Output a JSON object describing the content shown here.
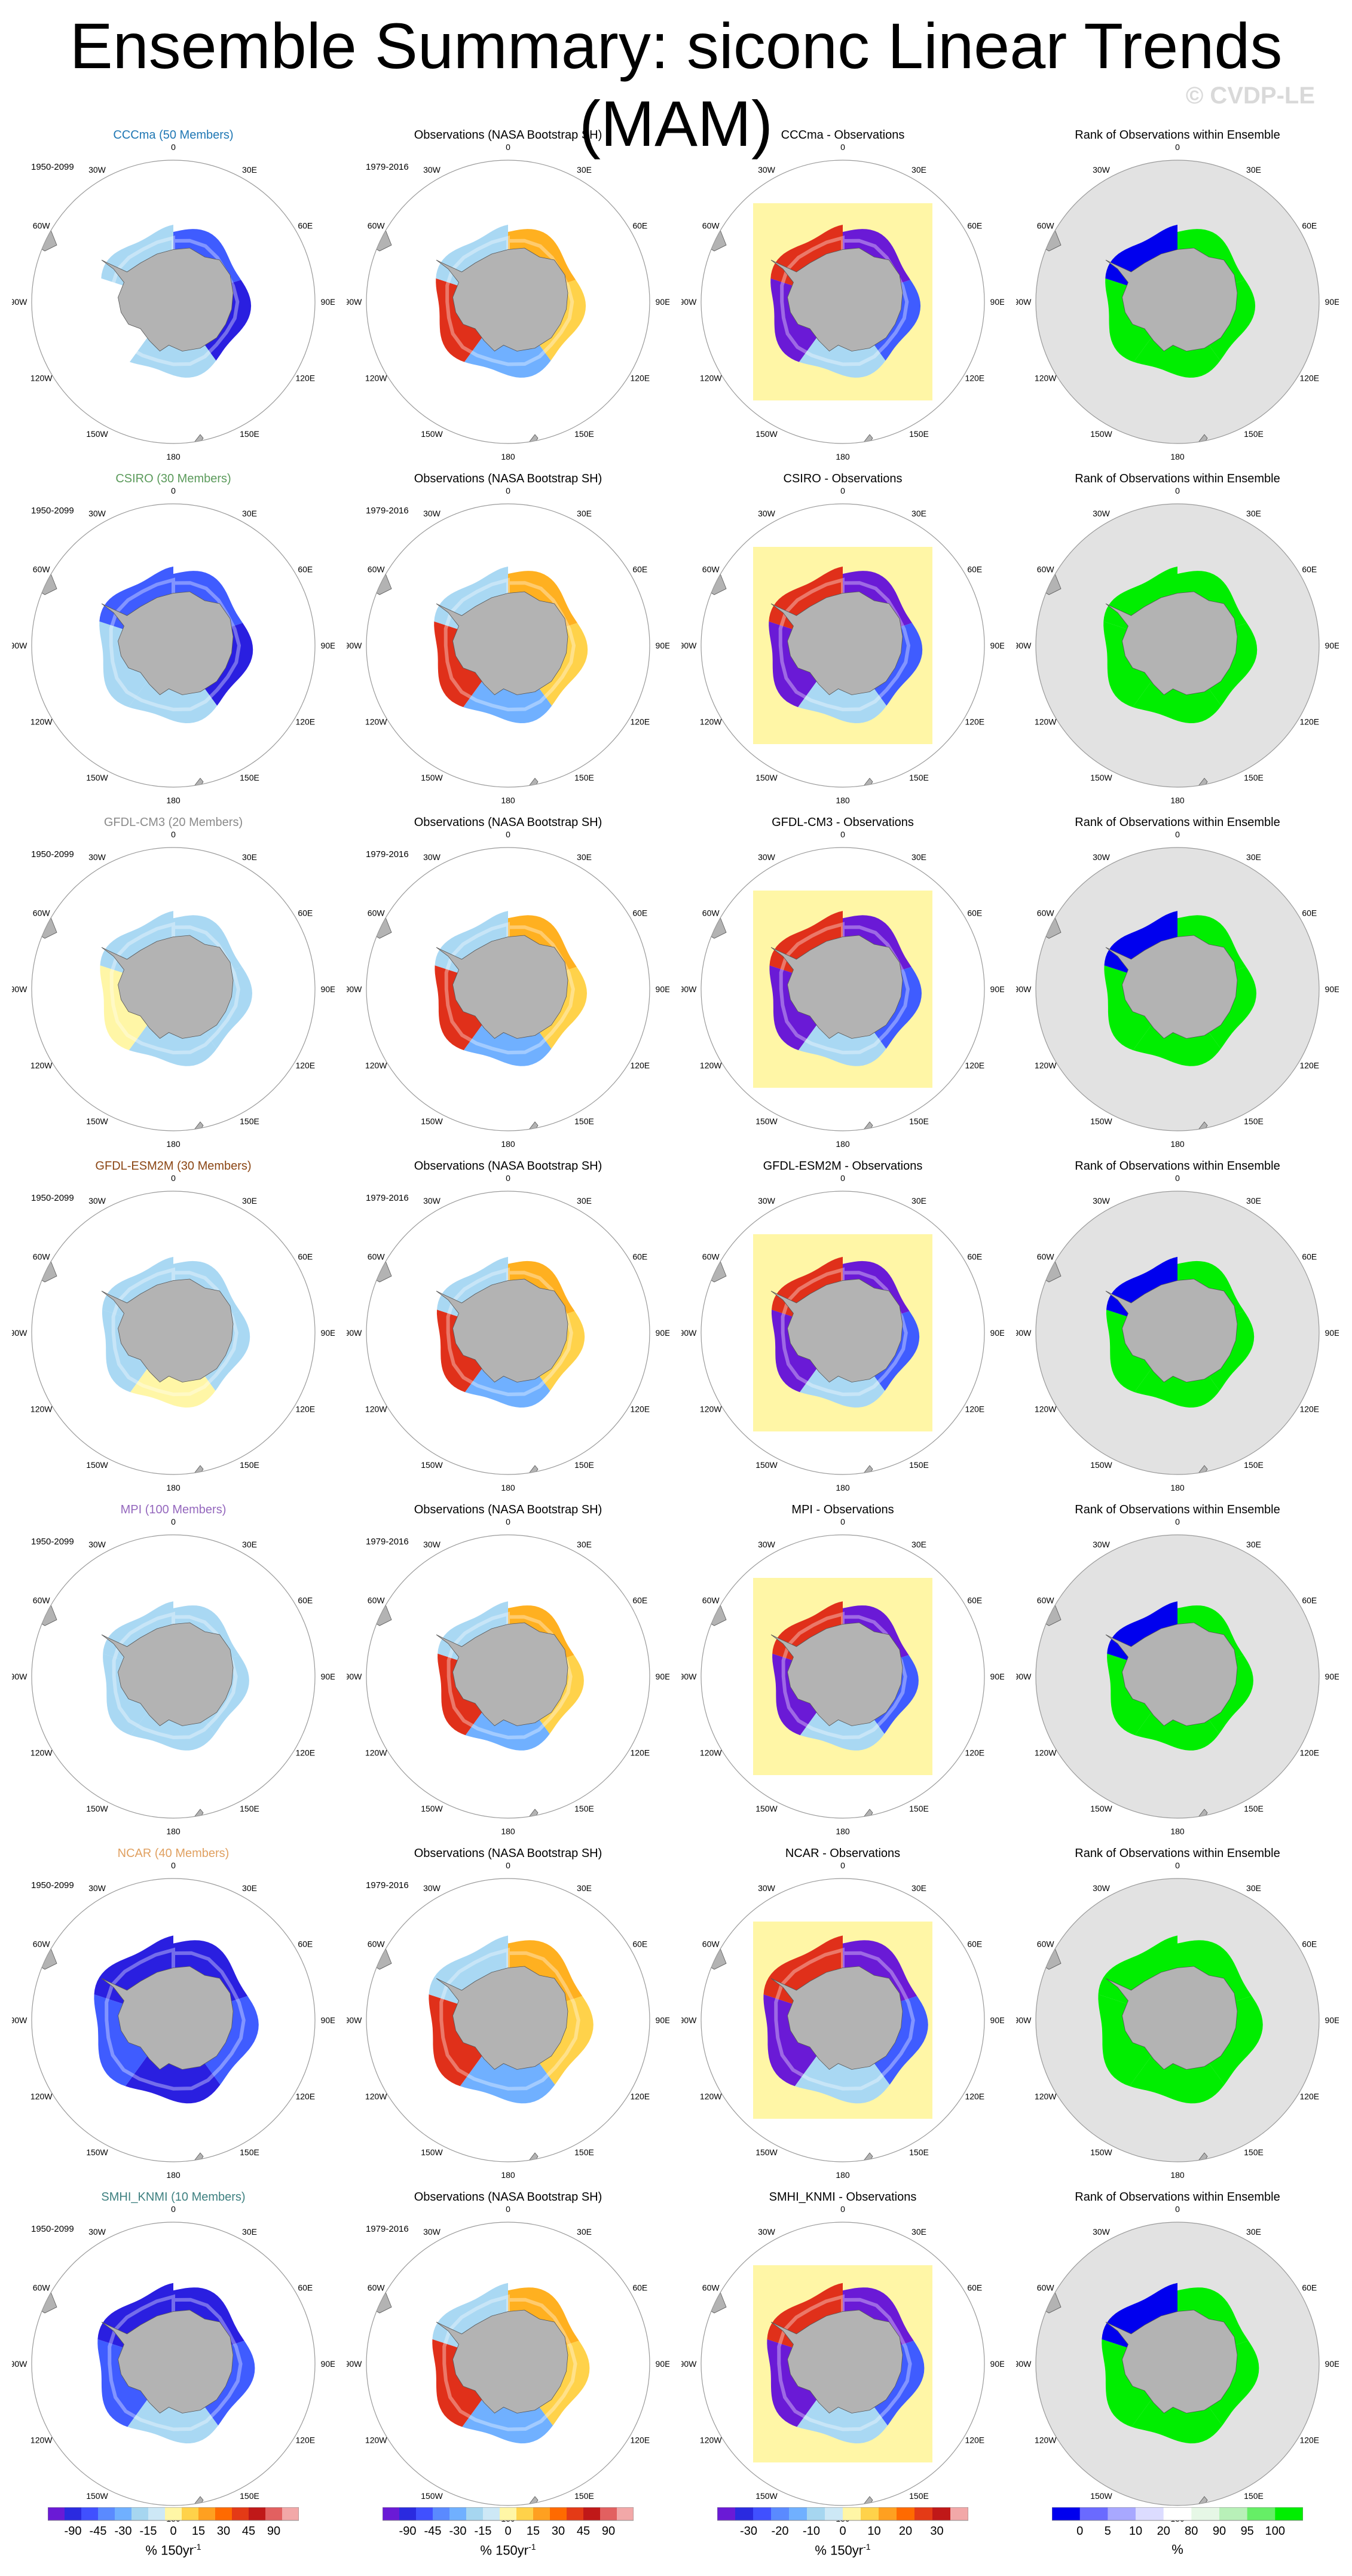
{
  "page": {
    "title": "Ensemble Summary: siconc Linear Trends (MAM)",
    "credit": "© CVDP-LE"
  },
  "colors": {
    "land": "#b3b3b3",
    "grid": "#9a9a9a",
    "rank_bg": "#e2e2e2",
    "titles": {
      "CCCma": "#1f77b4",
      "CSIRO": "#5a9a5a",
      "GFDL-CM3": "#8a8a8a",
      "GFDL-ESM2M": "#8b4513",
      "MPI": "#9467bd",
      "NCAR": "#e0a060",
      "SMHI_KNMI": "#3e8080"
    }
  },
  "grid_labels": [
    "0",
    "30E",
    "60E",
    "90E",
    "120E",
    "150E",
    "180",
    "150W",
    "120W",
    "90W",
    "60W",
    "30W"
  ],
  "chart_data": {
    "type": "heatmap",
    "projection": "south-polar-stereographic",
    "variable": "siconc",
    "season": "MAM",
    "rows": [
      {
        "model": "CCCma",
        "col1_title": "CCCma (50 Members)",
        "model_period": "1950-2099",
        "obs_title": "Observations (NASA Bootstrap SH)",
        "obs_period": "1979-2016",
        "diff_title": "CCCma - Observations",
        "rank_title": "Rank of Observations within Ensemble",
        "model_trend": {
          "ice_extent": 0.55,
          "levels": [
            "blue",
            "darkblue",
            "lightblue",
            "white",
            "lightblue"
          ]
        },
        "rank": {
          "green_share": 0.75
        }
      },
      {
        "model": "CSIRO",
        "col1_title": "CSIRO (30 Members)",
        "model_period": "1950-2099",
        "obs_title": "Observations (NASA Bootstrap SH)",
        "obs_period": "1979-2016",
        "diff_title": "CSIRO - Observations",
        "rank_title": "Rank of Observations within Ensemble",
        "model_trend": {
          "ice_extent": 0.6,
          "levels": [
            "blue",
            "darkblue",
            "lightblue",
            "lightblue",
            "blue"
          ]
        },
        "rank": {
          "green_share": 0.85
        }
      },
      {
        "model": "GFDL-CM3",
        "col1_title": "GFDL-CM3 (20 Members)",
        "model_period": "1950-2099",
        "obs_title": "Observations (NASA Bootstrap SH)",
        "obs_period": "1979-2016",
        "diff_title": "GFDL-CM3 - Observations",
        "rank_title": "Rank of Observations within Ensemble",
        "model_trend": {
          "ice_extent": 0.58,
          "levels": [
            "lightblue",
            "lightblue",
            "lightblue",
            "yellow",
            "lightblue"
          ]
        },
        "rank": {
          "green_share": 0.7
        }
      },
      {
        "model": "GFDL-ESM2M",
        "col1_title": "GFDL-ESM2M (30 Members)",
        "model_period": "1950-2099",
        "obs_title": "Observations (NASA Bootstrap SH)",
        "obs_period": "1979-2016",
        "diff_title": "GFDL-ESM2M - Observations",
        "rank_title": "Rank of Observations within Ensemble",
        "model_trend": {
          "ice_extent": 0.52,
          "levels": [
            "lightblue",
            "lightblue",
            "yellow",
            "lightblue",
            "lightblue"
          ]
        },
        "rank": {
          "green_share": 0.75
        }
      },
      {
        "model": "MPI",
        "col1_title": "MPI (100 Members)",
        "model_period": "1950-2099",
        "obs_title": "Observations (NASA Bootstrap SH)",
        "obs_period": "1979-2016",
        "diff_title": "MPI - Observations",
        "rank_title": "Rank of Observations within Ensemble",
        "model_trend": {
          "ice_extent": 0.5,
          "levels": [
            "lightblue",
            "lightblue",
            "lightblue",
            "lightblue",
            "lightblue"
          ]
        },
        "rank": {
          "green_share": 0.65
        }
      },
      {
        "model": "NCAR",
        "col1_title": "NCAR (40 Members)",
        "model_period": "1950-2099",
        "obs_title": "Observations (NASA Bootstrap SH)",
        "obs_period": "1979-2016",
        "diff_title": "NCAR - Observations",
        "rank_title": "Rank of Observations within Ensemble",
        "model_trend": {
          "ice_extent": 0.75,
          "levels": [
            "darkblue",
            "blue",
            "darkblue",
            "blue",
            "darkblue"
          ]
        },
        "rank": {
          "green_share": 0.95
        }
      },
      {
        "model": "SMHI_KNMI",
        "col1_title": "SMHI_KNMI (10 Members)",
        "model_period": "1950-2099",
        "obs_title": "Observations (NASA Bootstrap SH)",
        "obs_period": "1979-2016",
        "diff_title": "SMHI_KNMI - Observations",
        "rank_title": "Rank of Observations within Ensemble",
        "model_trend": {
          "ice_extent": 0.65,
          "levels": [
            "darkblue",
            "blue",
            "lightblue",
            "blue",
            "darkblue"
          ]
        },
        "rank": {
          "green_share": 0.8
        }
      }
    ],
    "colorbars": [
      {
        "id": "trend-model",
        "title": "% 150yr",
        "title_sup": "-1",
        "labels": [
          "-90",
          "-45",
          "-30",
          "-15",
          "0",
          "15",
          "30",
          "45",
          "90"
        ],
        "colors": [
          "#6a1ad6",
          "#2a2ae0",
          "#4050ff",
          "#5a8aff",
          "#70b0ff",
          "#a6d6f0",
          "#cde8f6",
          "#fff6a6",
          "#ffd24a",
          "#ffa020",
          "#ff6a00",
          "#e43a16",
          "#c01818",
          "#e26060",
          "#f2a8a8"
        ]
      },
      {
        "id": "trend-obs",
        "title": "% 150yr",
        "title_sup": "-1",
        "labels": [
          "-90",
          "-45",
          "-30",
          "-15",
          "0",
          "15",
          "30",
          "45",
          "90"
        ],
        "colors": [
          "#6a1ad6",
          "#2a2ae0",
          "#4050ff",
          "#5a8aff",
          "#70b0ff",
          "#a6d6f0",
          "#cde8f6",
          "#fff6a6",
          "#ffd24a",
          "#ffa020",
          "#ff6a00",
          "#e43a16",
          "#c01818",
          "#e26060",
          "#f2a8a8"
        ]
      },
      {
        "id": "difference",
        "title": "% 150yr",
        "title_sup": "-1",
        "labels": [
          "-30",
          "-20",
          "-10",
          "0",
          "10",
          "20",
          "30"
        ],
        "colors": [
          "#6a1ad6",
          "#2a2ae0",
          "#4050ff",
          "#5a8aff",
          "#70b0ff",
          "#a6d6f0",
          "#cde8f6",
          "#fff6a6",
          "#ffd24a",
          "#ffa020",
          "#ff6a00",
          "#e43a16",
          "#c01818",
          "#f2a8a8"
        ]
      },
      {
        "id": "rank",
        "title": "%",
        "labels": [
          "0",
          "5",
          "10",
          "20",
          "80",
          "90",
          "95",
          "100"
        ],
        "colors": [
          "#0000ee",
          "#6a6aff",
          "#a8a8ff",
          "#dcdcff",
          "#ffffff",
          "#e6f7e6",
          "#b8f0b8",
          "#66ee66",
          "#00ee00"
        ]
      }
    ]
  }
}
